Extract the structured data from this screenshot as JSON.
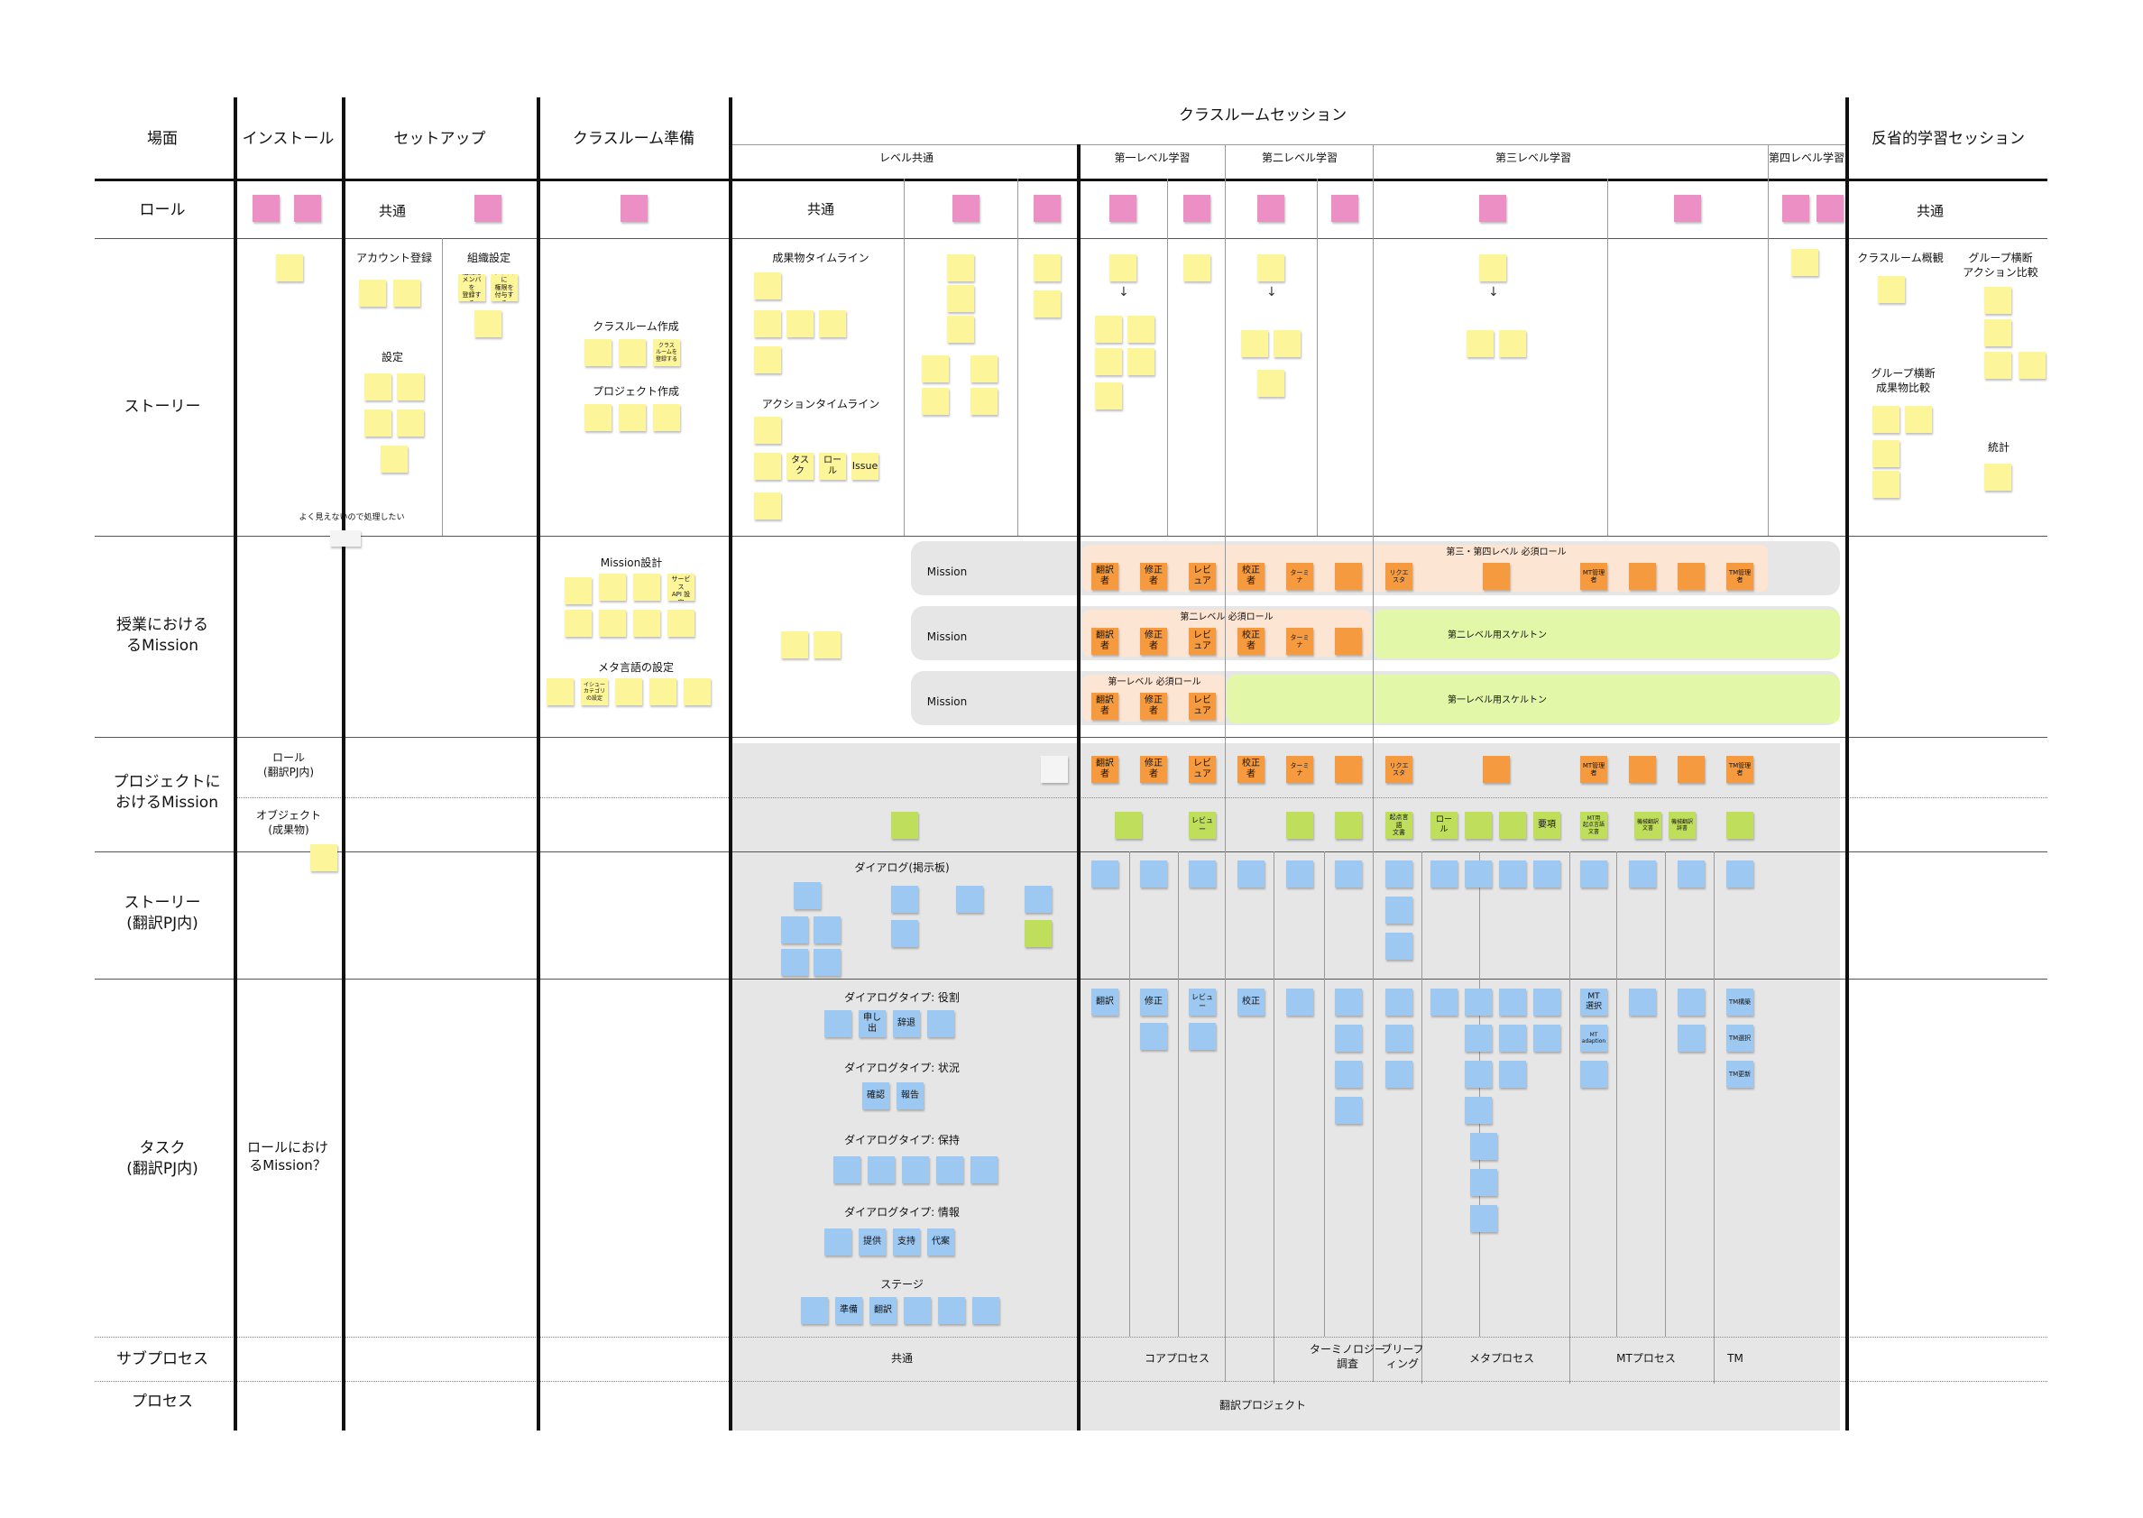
{
  "headers": {
    "scene": "場面",
    "install": "インストール",
    "setup": "セットアップ",
    "classroom_prep": "クラスルーム準備",
    "classroom_session": "クラスルームセッション",
    "reflective": "反省的学習セッション",
    "level_common": "レベル共通",
    "level1": "第一レベル学習",
    "level2": "第二レベル学習",
    "level3": "第三レベル学習",
    "level4": "第四レベル学習"
  },
  "rows": {
    "role": "ロール",
    "story": "ストーリー",
    "class_mission": "授業における\nるMission",
    "project_mission": "プロジェクトに\nおけるMission",
    "story_pj": "ストーリー\n(翻訳PJ内)",
    "task_pj": "タスク\n(翻訳PJ内)",
    "subprocess": "サブプロセス",
    "process": "プロセス"
  },
  "labels": {
    "common": "共通",
    "account": "アカウント登録",
    "org": "組織設定",
    "settings": "設定",
    "create_class": "クラスルーム作成",
    "create_project": "プロジェクト作成",
    "artifact_timeline": "成果物タイムライン",
    "action_timeline": "アクションタイムライン",
    "classroom_overview": "クラスルーム概観",
    "group_action": "グループ横断\nアクション比較",
    "group_artifact": "グループ横断\n成果物比較",
    "stats": "統計",
    "cant_see": "よく見えないので処理したい",
    "mission_design": "Mission設計",
    "meta_lang": "メタ言語の設定",
    "mission": "Mission",
    "lvl34_required": "第三・第四レベル 必須ロール",
    "lvl2_required": "第二レベル 必須ロール",
    "lvl1_required": "第一レベル 必須ロール",
    "lvl2_skeleton": "第二レベル用スケルトン",
    "lvl1_skeleton": "第一レベル用スケルトン",
    "role_in_pj": "ロール\n(翻訳PJ内)",
    "object": "オブジェクト\n(成果物)",
    "dialog_board": "ダイアログ(掲示板)",
    "dt_role": "ダイアログタイプ: 役割",
    "dt_status": "ダイアログタイプ: 状況",
    "dt_keep": "ダイアログタイプ: 保持",
    "dt_info": "ダイアログタイプ: 情報",
    "stage": "ステージ",
    "role_mission_q": "ロールにおけ\nるMission？",
    "sp_common": "共通",
    "sp_core": "コアプロセス",
    "sp_term": "ターミノロジー\n調査",
    "sp_brief": "ブリーフ\nィング",
    "sp_meta": "メタプロセス",
    "sp_mt": "MTプロセス",
    "sp_tm": "TM",
    "process_name": "翻訳プロジェクト"
  },
  "notes": {
    "task": "タスク",
    "role": "ロール",
    "issue": "Issue",
    "translator": "翻訳者",
    "reviser": "修正者",
    "reviewer": "レビュア",
    "proofreader": "校正者",
    "terminologist": "ターミナ",
    "requester": "リクエスタ",
    "mt_manager": "MT管理者",
    "tm_manager": "TM管理者",
    "source_doc": "起点言語\n文書",
    "role_word": "ロール",
    "points": "要項",
    "mt_source": "MT用\n起点言語\n文書",
    "mt_target": "機械翻訳\n文書",
    "mt_dict": "機械翻訳\n辞書",
    "translate": "翻訳",
    "revise": "修正",
    "review": "レビュー",
    "proof": "校正",
    "mt_select": "MT\n選択",
    "mt_adapt": "MT\nadaption",
    "tm_build": "TM構築",
    "tm_select": "TM選択",
    "tm_update": "TM更新",
    "offer": "申し出",
    "decline": "辞退",
    "confirm": "確認",
    "report": "報告",
    "provide": "提供",
    "support": "支持",
    "substitute": "代案",
    "prepare": "準備",
    "translate2": "翻訳",
    "mt_service": "MT\nサービス\nAPI 設定",
    "org_register": "組織に\nメンバを\n登録する",
    "authority": "メンバに\n権限を\n付与する",
    "create_class_n": "クラス\nルームを\n登録する",
    "issue_cat": "イシュー\nカテゴリ\nの設定"
  },
  "colors": {
    "yellow": "#fdf59a",
    "pink": "#ec8fc4",
    "orange": "#f69a3f",
    "blue": "#9dc8f2",
    "green": "#bfdf5c",
    "gray_bg": "#e6e6e6",
    "peach": "#fde5d4",
    "lime": "#e2f8a8"
  }
}
